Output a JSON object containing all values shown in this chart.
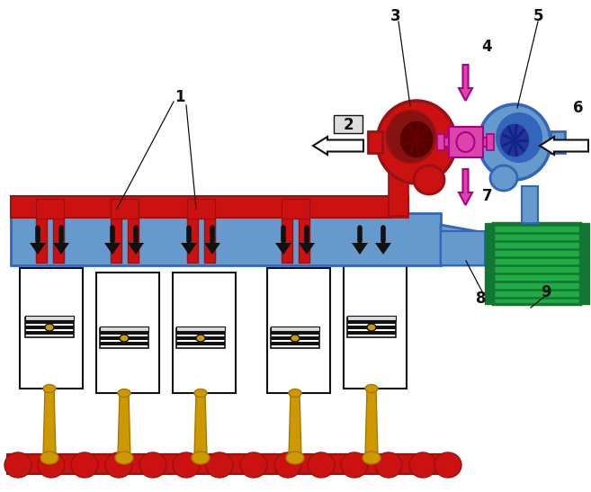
{
  "bg": "#ffffff",
  "red": "#cc1111",
  "dark_red": "#991111",
  "blue_light": "#6699cc",
  "blue_dark": "#3366bb",
  "blue_navy": "#223399",
  "green": "#22aa44",
  "dark_green": "#117733",
  "pink": "#dd44aa",
  "gold": "#cc9900",
  "gold_dark": "#aa7700",
  "black": "#111111",
  "white": "#ffffff",
  "gray": "#aaaaaa",
  "dark_maroon": "#550000",
  "maroon2": "#881111",
  "label_bg": "#e8e8e8"
}
